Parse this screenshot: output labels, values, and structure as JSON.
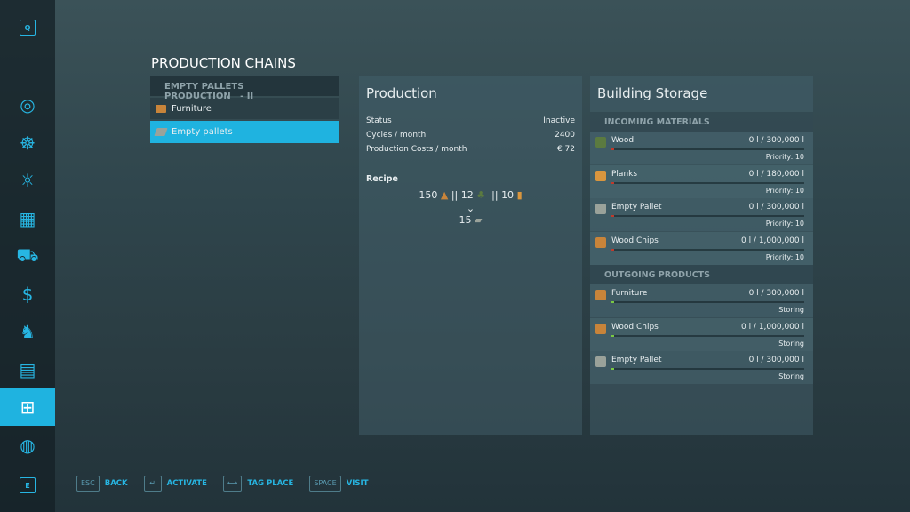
{
  "sidebar": {
    "top_key": "Q",
    "bottom_key": "E",
    "items": [
      {
        "icon": "map-pin-icon",
        "glyph": "◎"
      },
      {
        "icon": "steering-wheel-icon",
        "glyph": "☸"
      },
      {
        "icon": "weather-icon",
        "glyph": "☼"
      },
      {
        "icon": "statistics-icon",
        "glyph": "▦"
      },
      {
        "icon": "tractor-icon",
        "glyph": "⛟"
      },
      {
        "icon": "finances-icon",
        "glyph": "$"
      },
      {
        "icon": "animals-icon",
        "glyph": "♞"
      },
      {
        "icon": "contracts-icon",
        "glyph": "▤"
      },
      {
        "icon": "production-icon",
        "glyph": "⊞",
        "active": true
      },
      {
        "icon": "help-icon",
        "glyph": "◍"
      }
    ]
  },
  "title": "PRODUCTION CHAINS",
  "list": {
    "header": "EMPTY PALLETS PRODUCTION",
    "header_suffix": "- II",
    "items": [
      {
        "label": "Furniture",
        "icon": "furniture-icon"
      },
      {
        "label": "Empty pallets",
        "icon": "empty-pallet-icon",
        "selected": true
      }
    ]
  },
  "production": {
    "title": "Production",
    "rows": [
      {
        "k": "Status",
        "v": "Inactive"
      },
      {
        "k": "Cycles / month",
        "v": "2400"
      },
      {
        "k": "Production Costs / month",
        "v": "€ 72"
      }
    ],
    "recipe_label": "Recipe",
    "inputs": [
      {
        "amount": "150",
        "icon": "wood-chips-icon"
      },
      {
        "amount": "12",
        "icon": "wood-icon"
      },
      {
        "amount": "10",
        "icon": "planks-icon"
      }
    ],
    "separator": "||",
    "output": {
      "amount": "15",
      "icon": "empty-pallet-icon"
    }
  },
  "storage": {
    "title": "Building Storage",
    "incoming_label": "INCOMING MATERIALS",
    "outgoing_label": "OUTGOING PRODUCTS",
    "incoming": [
      {
        "name": "Wood",
        "value": "0 l / 300,000 l",
        "status": "Priority: 10",
        "icon": "wood-icon"
      },
      {
        "name": "Planks",
        "value": "0 l / 180,000 l",
        "status": "Priority: 10",
        "icon": "planks-icon"
      },
      {
        "name": "Empty Pallet",
        "value": "0 l / 300,000 l",
        "status": "Priority: 10",
        "icon": "empty-pallet-icon"
      },
      {
        "name": "Wood Chips",
        "value": "0 l / 1,000,000 l",
        "status": "Priority: 10",
        "icon": "wood-chips-icon"
      }
    ],
    "outgoing": [
      {
        "name": "Furniture",
        "value": "0 l / 300,000 l",
        "status": "Storing",
        "icon": "furniture-icon"
      },
      {
        "name": "Wood Chips",
        "value": "0 l / 1,000,000 l",
        "status": "Storing",
        "icon": "wood-chips-icon"
      },
      {
        "name": "Empty Pallet",
        "value": "0 l / 300,000 l",
        "status": "Storing",
        "icon": "empty-pallet-icon"
      }
    ],
    "fill_fraction": 0
  },
  "footer": [
    {
      "key": "ESC",
      "label": "BACK"
    },
    {
      "key": "↵",
      "label": "ACTIVATE"
    },
    {
      "key": "⟷",
      "label": "TAG PLACE"
    },
    {
      "key": "SPACE",
      "label": "VISIT"
    }
  ],
  "colors": {
    "accent": "#1fb3e0",
    "incoming_bar": "#c0392b",
    "outgoing_bar": "#7ac943"
  }
}
